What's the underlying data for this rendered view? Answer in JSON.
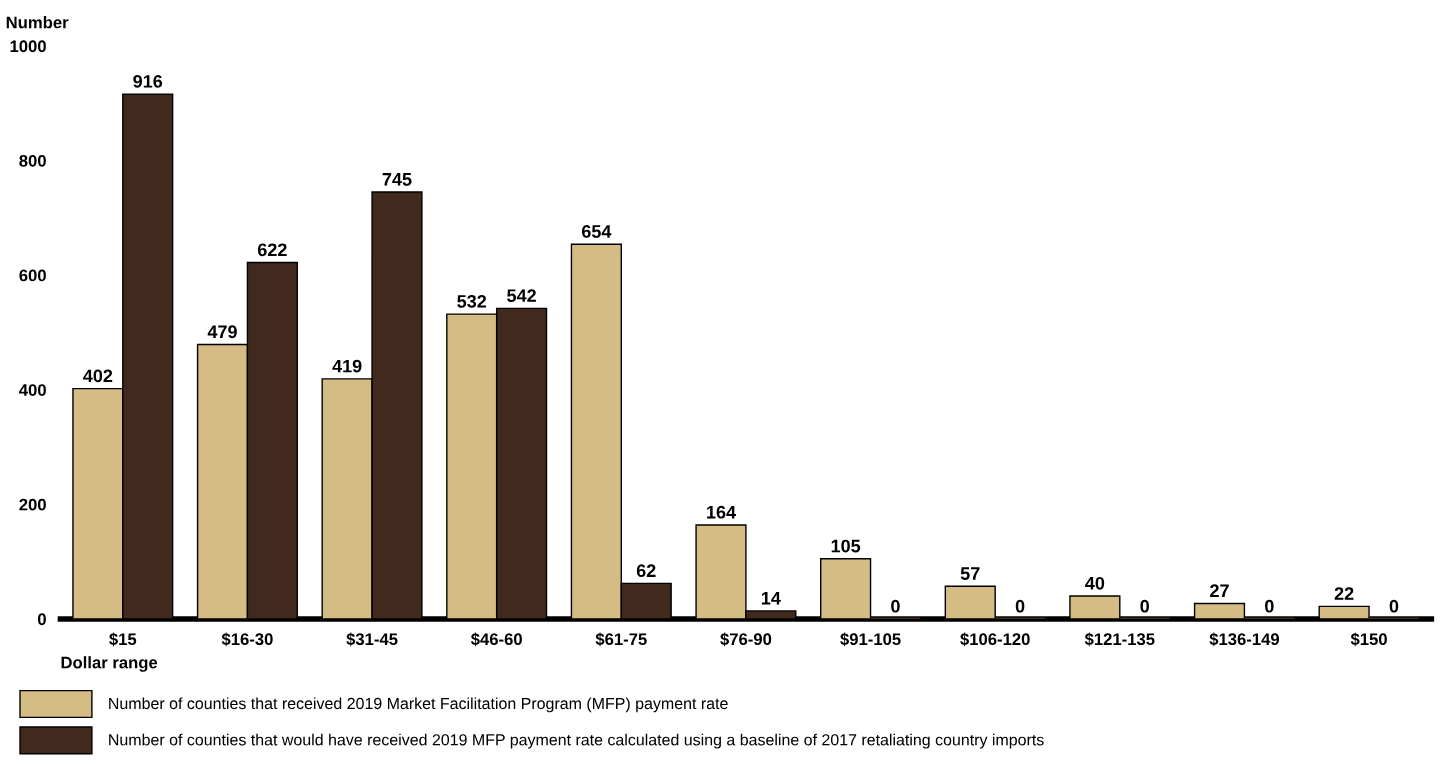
{
  "chart_data": {
    "type": "bar",
    "xlabel": "Dollar range",
    "ylabel": "Number",
    "categories": [
      "$15",
      "$16-30",
      "$31-45",
      "$46-60",
      "$61-75",
      "$76-90",
      "$91-105",
      "$106-120",
      "$121-135",
      "$136-149",
      "$150"
    ],
    "series": [
      {
        "name": "Number of counties that received 2019 Market Facilitation Program (MFP) payment rate",
        "color": "#d5bc84",
        "values": [
          402,
          479,
          419,
          532,
          654,
          164,
          105,
          57,
          40,
          27,
          22
        ]
      },
      {
        "name": "Number of counties that would have received 2019 MFP payment rate calculated using a baseline of 2017 retaliating country imports",
        "color": "#42291e",
        "values": [
          916,
          622,
          745,
          542,
          62,
          14,
          0,
          0,
          0,
          0,
          0
        ]
      }
    ],
    "ylim": [
      0,
      1000
    ],
    "yticks": [
      0,
      200,
      400,
      600,
      800,
      1000
    ],
    "grid": false,
    "legend": "bottom",
    "data_labels": true
  }
}
